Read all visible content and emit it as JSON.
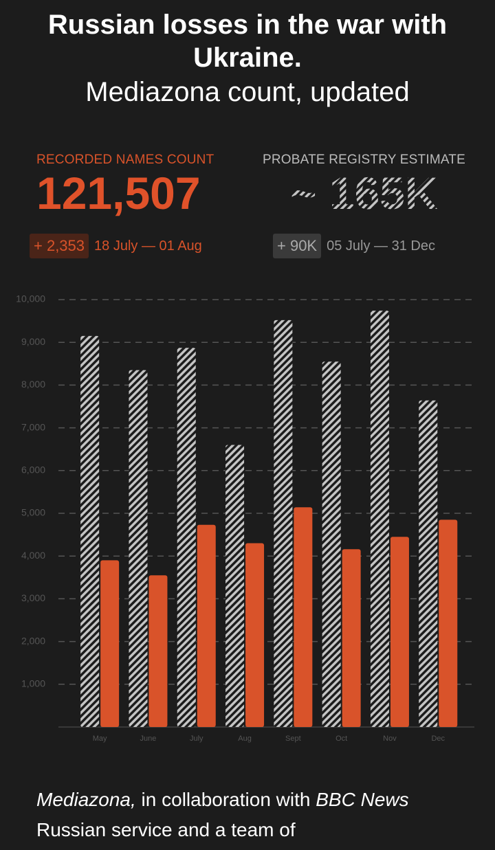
{
  "header": {
    "title": "Russian losses in the war with Ukraine.",
    "subtitle": "Mediazona count, updated"
  },
  "stats": [
    {
      "label": "RECORDED NAMES COUNT",
      "value": "121,507",
      "change": "+ 2,353",
      "period": "18 July — 01 Aug",
      "style": "solid"
    },
    {
      "label": "PROBATE REGISTRY ESTIMATE",
      "value": "~ 165K",
      "change": "+ 90K",
      "period": "05 July — 31 Dec",
      "style": "hatched"
    }
  ],
  "chart_data": {
    "type": "bar",
    "categories": [
      "May",
      "June",
      "July",
      "Aug",
      "Sept",
      "Oct",
      "Nov",
      "Dec"
    ],
    "series": [
      {
        "color": "#c4c4c4",
        "hatch": true,
        "values": [
          9150,
          8350,
          8870,
          6600,
          9520,
          8550,
          9740,
          7640
        ]
      },
      {
        "color": "#d9532a",
        "hatch": false,
        "values": [
          3900,
          3550,
          4730,
          4300,
          5140,
          4160,
          4450,
          4850
        ]
      }
    ],
    "ylim": [
      0,
      10000
    ],
    "yticks": [
      {
        "value": 1000,
        "label": "1,000"
      },
      {
        "value": 2000,
        "label": "2,000"
      },
      {
        "value": 3000,
        "label": "3,000"
      },
      {
        "value": 4000,
        "label": "4,000"
      },
      {
        "value": 5000,
        "label": "5,000"
      },
      {
        "value": 6000,
        "label": "6,000"
      },
      {
        "value": 7000,
        "label": "7,000"
      },
      {
        "value": 8000,
        "label": "8,000"
      },
      {
        "value": 9000,
        "label": "9,000"
      },
      {
        "value": 10000,
        "label": "10,000"
      }
    ],
    "grid": true
  },
  "footer": [
    {
      "text": "Mediazona,",
      "italic": true
    },
    {
      "text": " in collaboration with ",
      "italic": false
    },
    {
      "text": "BBC News",
      "italic": true
    },
    {
      "text": " Russian service and a team of",
      "italic": false
    }
  ]
}
